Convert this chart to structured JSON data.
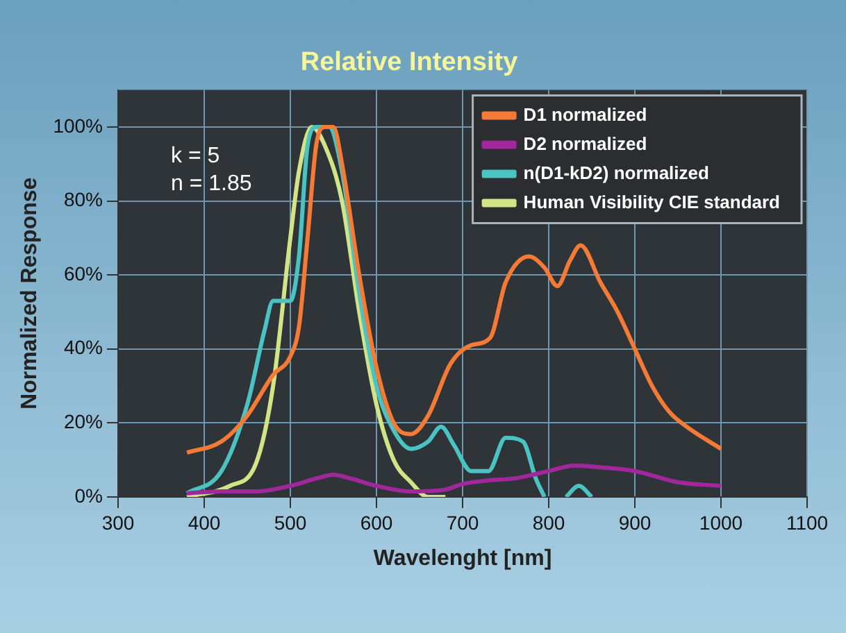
{
  "chart_data": {
    "type": "line",
    "title": "Relative Intensity",
    "xlabel": "Wavelenght [nm]",
    "ylabel": "Normalized Response",
    "annotations": [
      "k = 5",
      "n = 1.85"
    ],
    "xlim": [
      300,
      1100
    ],
    "xticks": [
      300,
      400,
      500,
      600,
      700,
      800,
      900,
      1000,
      1100
    ],
    "ylim": [
      0,
      110
    ],
    "yticks": [
      {
        "value": 0,
        "label": "0%"
      },
      {
        "value": 20,
        "label": "20%"
      },
      {
        "value": 40,
        "label": "40%"
      },
      {
        "value": 60,
        "label": "60%"
      },
      {
        "value": 80,
        "label": "80%"
      },
      {
        "value": 100,
        "label": "100%"
      }
    ],
    "grid": true,
    "legend": "top right",
    "marker": "none",
    "line_style": "solid",
    "series": [
      {
        "name": "D1 normalized",
        "color": "#f47a35",
        "x": [
          380,
          420,
          450,
          480,
          500,
          510,
          520,
          530,
          540,
          550,
          560,
          580,
          600,
          620,
          640,
          660,
          686,
          710,
          732,
          750,
          777,
          795,
          810,
          825,
          837,
          860,
          880,
          900,
          920,
          940,
          960,
          1000
        ],
        "values": [
          12,
          15,
          22,
          33,
          38,
          46,
          70,
          95,
          100,
          100,
          90,
          60,
          35,
          20,
          17,
          22,
          36,
          41,
          43,
          58,
          65,
          62,
          57,
          64,
          68,
          58,
          50,
          40,
          30,
          23,
          19,
          13
        ]
      },
      {
        "name": "D2 normalized",
        "color": "#a0289a",
        "x": [
          380,
          420,
          460,
          500,
          530,
          550,
          570,
          600,
          640,
          680,
          700,
          730,
          760,
          800,
          830,
          860,
          900,
          950,
          1000
        ],
        "values": [
          1,
          1.5,
          1.5,
          3,
          5,
          6,
          5,
          3,
          1.5,
          2,
          3.5,
          4.5,
          5,
          7,
          8.5,
          8,
          7,
          4,
          3
        ]
      },
      {
        "name": "n(D1-kD2) normalized",
        "color": "#4cc3c3",
        "x": [
          380,
          420,
          450,
          470,
          480,
          500,
          510,
          520,
          530,
          545,
          560,
          580,
          600,
          620,
          640,
          660,
          675,
          690,
          710,
          730,
          750,
          770,
          785,
          795,
          805,
          820,
          835,
          850
        ],
        "values": [
          1,
          7,
          25,
          45,
          53,
          53,
          65,
          95,
          100,
          100,
          88,
          55,
          30,
          18,
          13,
          15,
          19,
          14,
          7,
          7,
          16,
          15,
          5,
          0,
          null,
          0,
          3,
          0
        ]
      },
      {
        "name": "Human Visibility CIE standard",
        "color": "#d3e486",
        "x": [
          380,
          430,
          460,
          480,
          500,
          510,
          525,
          540,
          560,
          580,
          600,
          620,
          640,
          660,
          680
        ],
        "values": [
          0,
          3,
          9,
          30,
          70,
          88,
          100,
          95,
          80,
          50,
          25,
          10,
          4,
          0,
          0
        ]
      }
    ]
  }
}
